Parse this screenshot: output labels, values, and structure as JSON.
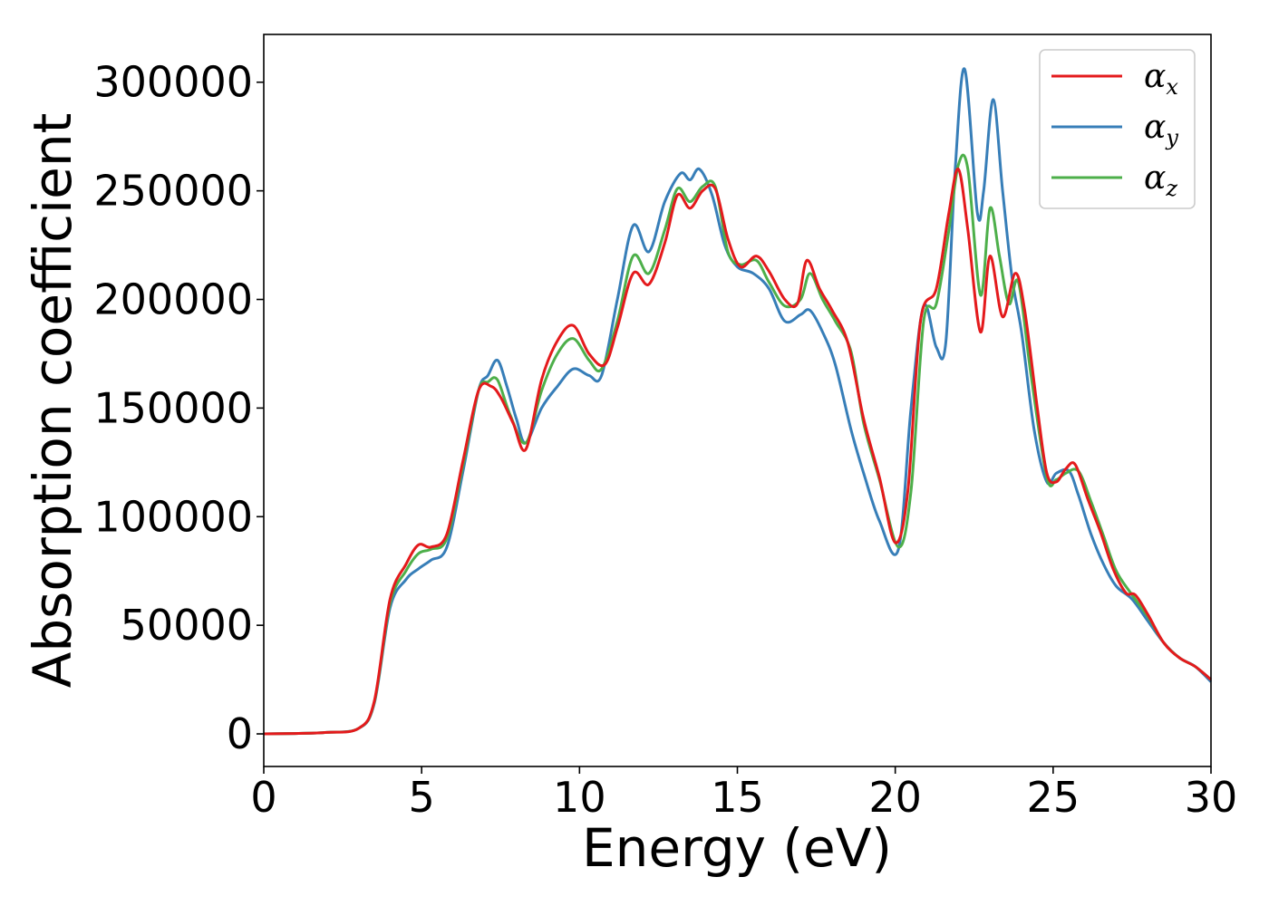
{
  "chart_data": {
    "type": "line",
    "title": "",
    "xlabel": "Energy (eV)",
    "ylabel": "Absorption coefficient",
    "xlim": [
      0,
      30
    ],
    "ylim": [
      -15000,
      322000
    ],
    "xticks": [
      0,
      5,
      10,
      15,
      20,
      25,
      30
    ],
    "yticks": [
      0,
      50000,
      100000,
      150000,
      200000,
      250000,
      300000
    ],
    "xtick_labels": [
      "0",
      "5",
      "10",
      "15",
      "20",
      "25",
      "30"
    ],
    "ytick_labels": [
      "0",
      "50000",
      "100000",
      "150000",
      "200000",
      "250000",
      "300000"
    ],
    "grid": false,
    "legend_position": "top-right",
    "legend": {
      "entries": [
        {
          "symbol": "α",
          "sub": "x"
        },
        {
          "symbol": "α",
          "sub": "y"
        },
        {
          "symbol": "α",
          "sub": "z"
        }
      ]
    },
    "series": [
      {
        "name": "αx",
        "color": "#e41a1c",
        "x": [
          0,
          1,
          2,
          3,
          3.5,
          4,
          4.5,
          4.9,
          5.3,
          5.8,
          6.3,
          6.8,
          7.2,
          7.5,
          7.9,
          8.3,
          8.8,
          9.3,
          9.8,
          10.3,
          10.8,
          11.2,
          11.7,
          12.2,
          12.7,
          13.1,
          13.5,
          13.9,
          14.3,
          14.7,
          15.1,
          15.6,
          16.0,
          16.5,
          16.9,
          17.2,
          17.6,
          18.0,
          18.5,
          19.0,
          19.5,
          20.0,
          20.4,
          20.8,
          21.3,
          21.7,
          22.0,
          22.3,
          22.7,
          23.0,
          23.4,
          23.8,
          24.1,
          24.5,
          24.8,
          25.1,
          25.4,
          25.7,
          26.1,
          26.5,
          26.9,
          27.3,
          27.6,
          28.0,
          28.5,
          29.0,
          29.5,
          30.0
        ],
        "y": [
          0,
          200,
          700,
          2500,
          15000,
          62000,
          78000,
          87000,
          86000,
          92000,
          125000,
          158000,
          160000,
          155000,
          143000,
          131000,
          163000,
          181000,
          188000,
          175000,
          170000,
          187000,
          212000,
          207000,
          226000,
          248000,
          242000,
          250000,
          251000,
          228000,
          215000,
          220000,
          213000,
          200000,
          198000,
          218000,
          205000,
          195000,
          180000,
          145000,
          118000,
          88000,
          112000,
          190000,
          205000,
          240000,
          260000,
          232000,
          185000,
          220000,
          192000,
          212000,
          195000,
          150000,
          120000,
          116000,
          122000,
          124000,
          108000,
          93000,
          76000,
          65000,
          64000,
          55000,
          42000,
          35000,
          31000,
          25000
        ]
      },
      {
        "name": "αy",
        "color": "#377eb8",
        "x": [
          0,
          1,
          2,
          3,
          3.5,
          4,
          4.5,
          4.9,
          5.3,
          5.8,
          6.3,
          6.8,
          7.1,
          7.4,
          7.7,
          8.0,
          8.3,
          8.8,
          9.3,
          9.8,
          10.3,
          10.7,
          11.2,
          11.7,
          12.2,
          12.7,
          13.2,
          13.5,
          13.8,
          14.2,
          14.6,
          15.0,
          15.5,
          16.0,
          16.5,
          17.0,
          17.3,
          17.7,
          18.1,
          18.6,
          19.0,
          19.5,
          20.1,
          20.5,
          20.9,
          21.3,
          21.6,
          21.9,
          22.2,
          22.6,
          22.8,
          23.1,
          23.4,
          23.7,
          24.0,
          24.4,
          24.8,
          25.1,
          25.5,
          25.8,
          26.2,
          26.6,
          27.0,
          27.5,
          28.0,
          28.5,
          29.0,
          29.5,
          30.0
        ],
        "y": [
          0,
          200,
          700,
          2500,
          14000,
          58000,
          71000,
          76000,
          80000,
          86000,
          120000,
          158000,
          165000,
          172000,
          160000,
          145000,
          134000,
          150000,
          160000,
          168000,
          165000,
          165000,
          200000,
          234000,
          222000,
          245000,
          258000,
          255000,
          260000,
          248000,
          225000,
          215000,
          212000,
          205000,
          190000,
          193000,
          195000,
          185000,
          170000,
          140000,
          120000,
          98000,
          85000,
          150000,
          197000,
          178000,
          180000,
          260000,
          306000,
          240000,
          250000,
          292000,
          250000,
          210000,
          185000,
          140000,
          116000,
          120000,
          121000,
          110000,
          92000,
          78000,
          68000,
          62000,
          52000,
          42000,
          35000,
          31000,
          24000
        ]
      },
      {
        "name": "αz",
        "color": "#4daf4a",
        "x": [
          0,
          1,
          2,
          3,
          3.5,
          4,
          4.5,
          4.9,
          5.3,
          5.8,
          6.3,
          6.8,
          7.1,
          7.4,
          7.8,
          8.3,
          8.8,
          9.3,
          9.8,
          10.3,
          10.7,
          11.2,
          11.7,
          12.2,
          12.7,
          13.1,
          13.5,
          13.9,
          14.3,
          14.7,
          15.1,
          15.6,
          16.0,
          16.5,
          17.0,
          17.3,
          17.7,
          18.1,
          18.6,
          19.0,
          19.5,
          20.1,
          20.5,
          20.9,
          21.3,
          21.7,
          22.0,
          22.3,
          22.7,
          23.0,
          23.3,
          23.6,
          23.9,
          24.3,
          24.8,
          25.1,
          25.4,
          25.8,
          26.2,
          26.6,
          27.0,
          27.5,
          28.0,
          28.5,
          29.0,
          29.5,
          30.0
        ],
        "y": [
          0,
          200,
          700,
          2500,
          14500,
          60000,
          75000,
          83000,
          85000,
          90000,
          123000,
          158000,
          162000,
          163000,
          147000,
          134000,
          158000,
          175000,
          182000,
          172000,
          168000,
          190000,
          220000,
          212000,
          232000,
          251000,
          245000,
          252000,
          252000,
          222000,
          216000,
          218000,
          208000,
          197000,
          200000,
          212000,
          200000,
          190000,
          176000,
          143000,
          117000,
          86000,
          112000,
          190000,
          198000,
          232000,
          262000,
          260000,
          202000,
          242000,
          220000,
          198000,
          208000,
          165000,
          118000,
          117000,
          120000,
          121000,
          107000,
          91000,
          75000,
          64000,
          54000,
          42000,
          35000,
          31000,
          25000
        ]
      }
    ]
  }
}
